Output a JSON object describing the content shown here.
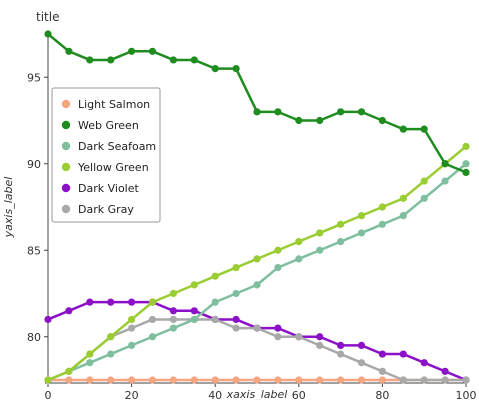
{
  "chart_data": {
    "type": "line",
    "title": "title",
    "xlabel": "xaxis_label",
    "ylabel": "yaxis_label",
    "xlim": [
      0,
      100
    ],
    "ylim": [
      77.5,
      97.5
    ],
    "xticks": [
      0,
      20,
      40,
      60,
      80,
      100
    ],
    "yticks": [
      80,
      85,
      90,
      95
    ],
    "grid": false,
    "legend_position": "left",
    "series": [
      {
        "name": "Light Salmon",
        "color": "#f4a582",
        "x": [
          0,
          5,
          10,
          15,
          20,
          25,
          30,
          35,
          40,
          45,
          50,
          55,
          60,
          65,
          70,
          75,
          80,
          85,
          90,
          95,
          100
        ],
        "y": [
          77.5,
          77.5,
          77.5,
          77.5,
          77.5,
          77.5,
          77.5,
          77.5,
          77.5,
          77.5,
          77.5,
          77.5,
          77.5,
          77.5,
          77.5,
          77.5,
          77.5,
          77.5,
          77.5,
          77.5,
          77.5
        ]
      },
      {
        "name": "Web Green",
        "color": "#1e8c1e",
        "x": [
          0,
          5,
          10,
          15,
          20,
          25,
          30,
          35,
          40,
          45,
          50,
          55,
          60,
          65,
          70,
          75,
          80,
          85,
          90,
          95,
          100
        ],
        "y": [
          97.5,
          96.5,
          96.0,
          96.0,
          96.5,
          96.5,
          96.0,
          96.0,
          95.5,
          95.5,
          93.0,
          93.0,
          92.5,
          92.5,
          93.0,
          93.0,
          92.5,
          92.0,
          92.0,
          90.0,
          89.5
        ]
      },
      {
        "name": "Dark Seafoam",
        "color": "#7fbf9f",
        "x": [
          0,
          5,
          10,
          15,
          20,
          25,
          30,
          35,
          40,
          45,
          50,
          55,
          60,
          65,
          70,
          75,
          80,
          85,
          90,
          95,
          100
        ],
        "y": [
          77.5,
          78.0,
          78.5,
          79.0,
          79.5,
          80.0,
          80.5,
          81.0,
          82.0,
          82.5,
          83.0,
          84.0,
          84.5,
          85.0,
          85.5,
          86.0,
          86.5,
          87.0,
          88.0,
          89.0,
          90.0
        ]
      },
      {
        "name": "Yellow Green",
        "color": "#9acd32",
        "x": [
          0,
          5,
          10,
          15,
          20,
          25,
          30,
          35,
          40,
          45,
          50,
          55,
          60,
          65,
          70,
          75,
          80,
          85,
          90,
          95,
          100
        ],
        "y": [
          77.5,
          78.0,
          79.0,
          80.0,
          81.0,
          82.0,
          82.5,
          83.0,
          83.5,
          84.0,
          84.5,
          85.0,
          85.5,
          86.0,
          86.5,
          87.0,
          87.5,
          88.0,
          89.0,
          90.0,
          91.0
        ]
      },
      {
        "name": "Dark Violet",
        "color": "#8b10c8",
        "x": [
          0,
          5,
          10,
          15,
          20,
          25,
          30,
          35,
          40,
          45,
          50,
          55,
          60,
          65,
          70,
          75,
          80,
          85,
          90,
          95,
          100
        ],
        "y": [
          81.0,
          81.5,
          82.0,
          82.0,
          82.0,
          82.0,
          81.5,
          81.5,
          81.0,
          81.0,
          80.5,
          80.5,
          80.0,
          80.0,
          79.5,
          79.5,
          79.0,
          79.0,
          78.5,
          78.0,
          77.5
        ]
      },
      {
        "name": "Dark Gray",
        "color": "#a9a9a9",
        "x": [
          0,
          5,
          10,
          15,
          20,
          25,
          30,
          35,
          40,
          45,
          50,
          55,
          60,
          65,
          70,
          75,
          80,
          85,
          90,
          95,
          100
        ],
        "y": [
          77.5,
          78.0,
          79.0,
          80.0,
          80.5,
          81.0,
          81.0,
          81.0,
          81.0,
          80.5,
          80.5,
          80.0,
          80.0,
          79.5,
          79.0,
          78.5,
          78.0,
          77.5,
          77.5,
          77.5,
          77.5
        ]
      }
    ]
  }
}
